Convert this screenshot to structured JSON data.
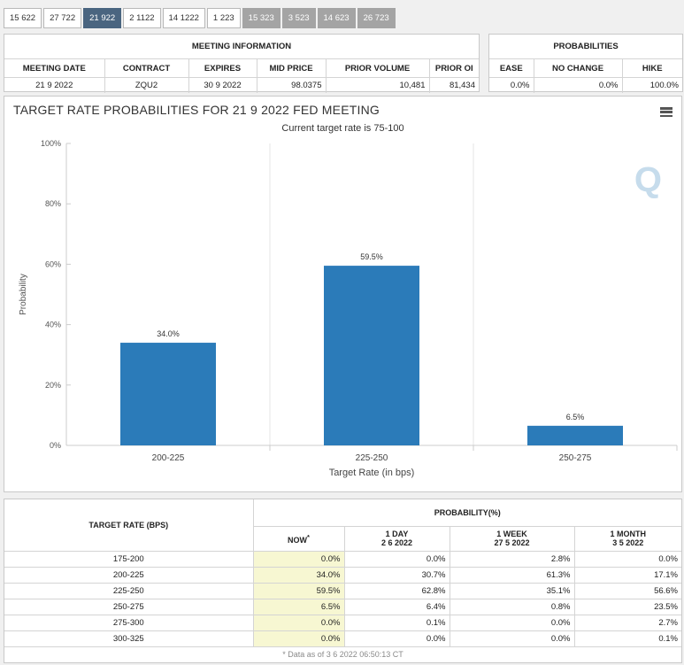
{
  "tabs": [
    {
      "label": "15 622",
      "state": "normal"
    },
    {
      "label": "27 722",
      "state": "normal"
    },
    {
      "label": "21 922",
      "state": "active"
    },
    {
      "label": "2 1122",
      "state": "normal"
    },
    {
      "label": "14 1222",
      "state": "normal"
    },
    {
      "label": "1 223",
      "state": "normal"
    },
    {
      "label": "15 323",
      "state": "dim"
    },
    {
      "label": "3 523",
      "state": "dim"
    },
    {
      "label": "14 623",
      "state": "dim"
    },
    {
      "label": "26 723",
      "state": "dim"
    }
  ],
  "meeting_info": {
    "title": "MEETING INFORMATION",
    "headers": [
      "MEETING DATE",
      "CONTRACT",
      "EXPIRES",
      "MID PRICE",
      "PRIOR VOLUME",
      "PRIOR OI"
    ],
    "values": [
      "21 9 2022",
      "ZQU2",
      "30 9 2022",
      "98.0375",
      "10,481",
      "81,434"
    ]
  },
  "probabilities": {
    "title": "PROBABILITIES",
    "headers": [
      "EASE",
      "NO CHANGE",
      "HIKE"
    ],
    "values": [
      "0.0%",
      "0.0%",
      "100.0%"
    ]
  },
  "chart": {
    "title": "TARGET RATE PROBABILITIES FOR 21 9 2022 FED MEETING",
    "subtitle": "Current target rate is 75-100",
    "watermark": "Q"
  },
  "chart_data": {
    "type": "bar",
    "categories": [
      "200-225",
      "225-250",
      "250-275"
    ],
    "values": [
      34.0,
      59.5,
      6.5
    ],
    "data_labels": [
      "34.0%",
      "59.5%",
      "6.5%"
    ],
    "xlabel": "Target Rate (in bps)",
    "ylabel": "Probability",
    "ylim": [
      0,
      100
    ],
    "yticks": [
      0,
      20,
      40,
      60,
      80,
      100
    ],
    "ytick_labels": [
      "0%",
      "20%",
      "40%",
      "60%",
      "80%",
      "100%"
    ],
    "bar_color": "#2b7bb9",
    "grid": true
  },
  "prob_table": {
    "target_header": "TARGET RATE (BPS)",
    "group_header": "PROBABILITY(%)",
    "columns": [
      {
        "title": "NOW",
        "sup": "*",
        "date": ""
      },
      {
        "title": "1 DAY",
        "sup": "",
        "date": "2 6 2022"
      },
      {
        "title": "1 WEEK",
        "sup": "",
        "date": "27 5 2022"
      },
      {
        "title": "1 MONTH",
        "sup": "",
        "date": "3 5 2022"
      }
    ],
    "rows": [
      {
        "rate": "175-200",
        "values": [
          "0.0%",
          "0.0%",
          "2.8%",
          "0.0%"
        ]
      },
      {
        "rate": "200-225",
        "values": [
          "34.0%",
          "30.7%",
          "61.3%",
          "17.1%"
        ]
      },
      {
        "rate": "225-250",
        "values": [
          "59.5%",
          "62.8%",
          "35.1%",
          "56.6%"
        ]
      },
      {
        "rate": "250-275",
        "values": [
          "6.5%",
          "6.4%",
          "0.8%",
          "23.5%"
        ]
      },
      {
        "rate": "275-300",
        "values": [
          "0.0%",
          "0.1%",
          "0.0%",
          "2.7%"
        ]
      },
      {
        "rate": "300-325",
        "values": [
          "0.0%",
          "0.0%",
          "0.0%",
          "0.1%"
        ]
      }
    ],
    "footnote": "* Data as of 3 6 2022 06:50:13 CT"
  }
}
